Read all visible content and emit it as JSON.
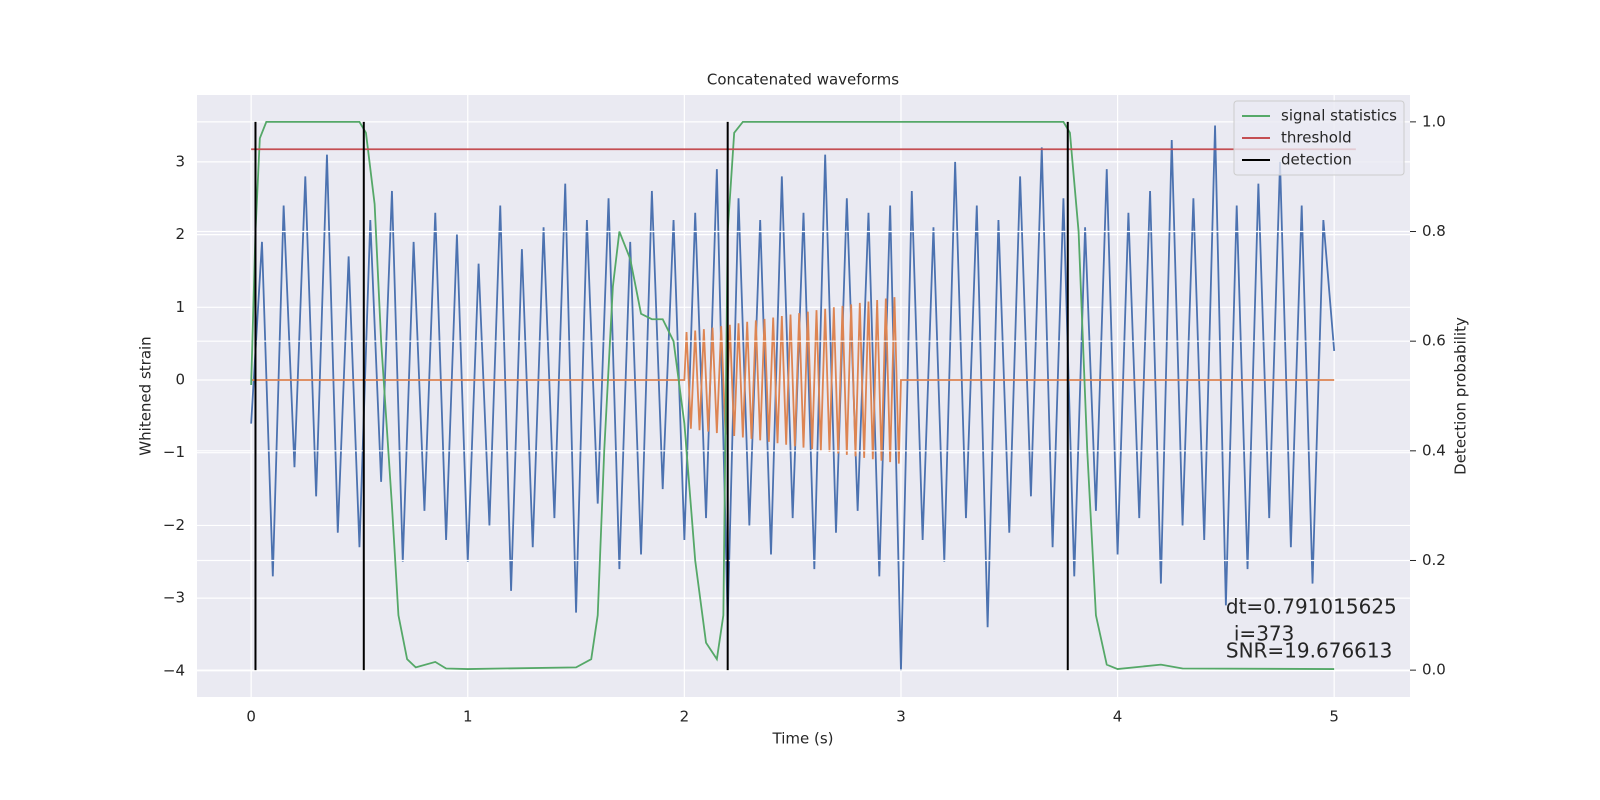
{
  "chart_data": {
    "type": "line",
    "title": "Concatenated waveforms",
    "xlabel": "Time (s)",
    "ylabel": "Whitened strain",
    "y2label": "Detection probability",
    "xlim": [
      -0.25,
      5.35
    ],
    "ylim": [
      -4.36,
      3.92
    ],
    "y2lim": [
      -0.049,
      1.049
    ],
    "xticks": [
      0,
      1,
      2,
      3,
      4,
      5
    ],
    "yticks": [
      {
        "value": -4,
        "label": "−4"
      },
      {
        "value": -3,
        "label": "−3"
      },
      {
        "value": -2,
        "label": "−2"
      },
      {
        "value": -1,
        "label": "−1"
      },
      0,
      1,
      2,
      3
    ],
    "y2ticks": [
      {
        "value": 0,
        "label": "0.0"
      },
      0.2,
      0.4,
      0.6,
      0.8,
      {
        "value": 1,
        "label": "1.0"
      }
    ],
    "grid": true,
    "legend": "upper right",
    "background": "#eaeaf2",
    "series": [
      {
        "color": "#4c72b0",
        "axis": "y",
        "x": [
          0,
          0.05,
          0.1,
          0.15,
          0.2,
          0.25,
          0.3,
          0.35,
          0.4,
          0.45,
          0.5,
          0.55,
          0.6,
          0.65,
          0.7,
          0.75,
          0.8,
          0.85,
          0.9,
          0.95,
          1,
          1.05,
          1.1,
          1.15,
          1.2,
          1.25,
          1.3,
          1.35,
          1.4,
          1.45,
          1.5,
          1.55,
          1.6,
          1.65,
          1.7,
          1.75,
          1.8,
          1.85,
          1.9,
          1.95,
          2,
          2.05,
          2.1,
          2.15,
          2.2,
          2.25,
          2.3,
          2.35,
          2.4,
          2.45,
          2.5,
          2.55,
          2.6,
          2.65,
          2.7,
          2.75,
          2.8,
          2.85,
          2.9,
          2.95,
          3,
          3.05,
          3.1,
          3.15,
          3.2,
          3.25,
          3.3,
          3.35,
          3.4,
          3.45,
          3.5,
          3.55,
          3.6,
          3.65,
          3.7,
          3.75,
          3.8,
          3.85,
          3.9,
          3.95,
          4,
          4.05,
          4.1,
          4.15,
          4.2,
          4.25,
          4.3,
          4.35,
          4.4,
          4.45,
          4.5,
          4.55,
          4.6,
          4.65,
          4.7,
          4.75,
          4.8,
          4.85,
          4.9,
          4.95,
          5
        ],
        "values": [
          -0.6,
          1.9,
          -2.7,
          2.4,
          -1.2,
          2.8,
          -1.6,
          3.1,
          -2.1,
          1.7,
          -2.3,
          2.2,
          -1.4,
          2.6,
          -2.5,
          1.9,
          -1.8,
          2.3,
          -2.2,
          2.0,
          -2.5,
          1.6,
          -2.0,
          2.4,
          -2.9,
          1.8,
          -2.3,
          2.1,
          -1.9,
          2.7,
          -3.2,
          2.2,
          -1.7,
          2.5,
          -2.6,
          1.9,
          -2.4,
          2.6,
          -1.5,
          2.2,
          -2.2,
          2.3,
          -1.9,
          2.9,
          -3.3,
          2.5,
          -2.0,
          2.2,
          -2.4,
          2.8,
          -1.9,
          2.3,
          -2.6,
          3.1,
          -2.1,
          2.5,
          -1.8,
          2.3,
          -2.7,
          2.4,
          -4.0,
          2.6,
          -2.2,
          2.1,
          -2.5,
          3.0,
          -1.9,
          2.4,
          -3.4,
          2.2,
          -2.1,
          2.8,
          -1.6,
          3.2,
          -2.3,
          2.5,
          -2.7,
          2.1,
          -1.8,
          2.9,
          -2.4,
          2.3,
          -1.9,
          2.6,
          -2.8,
          3.3,
          -2.0,
          2.5,
          -2.2,
          3.5,
          -3.1,
          2.4,
          -2.6,
          2.7,
          -1.9,
          3.0,
          -2.3,
          2.4,
          -2.8,
          2.2,
          0.4
        ]
      },
      {
        "color": "#dd8452",
        "axis": "y",
        "x": [
          0,
          2,
          2.01,
          2.03,
          2.05,
          2.07,
          2.09,
          2.11,
          2.13,
          2.15,
          2.17,
          2.19,
          2.21,
          2.23,
          2.25,
          2.27,
          2.29,
          2.31,
          2.33,
          2.35,
          2.37,
          2.39,
          2.41,
          2.43,
          2.45,
          2.47,
          2.49,
          2.51,
          2.53,
          2.55,
          2.57,
          2.59,
          2.61,
          2.63,
          2.65,
          2.67,
          2.69,
          2.71,
          2.73,
          2.75,
          2.77,
          2.79,
          2.81,
          2.83,
          2.85,
          2.87,
          2.89,
          2.91,
          2.93,
          2.95,
          2.97,
          2.99,
          3,
          5
        ],
        "values": [
          0,
          0,
          0.66,
          -0.67,
          0.68,
          -0.69,
          0.7,
          -0.71,
          0.72,
          -0.73,
          0.74,
          -0.75,
          0.76,
          -0.77,
          0.78,
          -0.79,
          0.8,
          -0.81,
          0.82,
          -0.83,
          0.84,
          -0.85,
          0.86,
          -0.87,
          0.88,
          -0.89,
          0.9,
          -0.91,
          0.92,
          -0.93,
          0.94,
          -0.95,
          0.96,
          -0.97,
          0.98,
          -0.99,
          1.0,
          -1.01,
          1.02,
          -1.03,
          1.04,
          -1.05,
          1.06,
          -1.07,
          1.08,
          -1.09,
          1.1,
          -1.11,
          1.12,
          -1.13,
          1.14,
          -1.15,
          0,
          0
        ]
      },
      {
        "name": "signal statistics",
        "color": "#55a868",
        "axis": "y2",
        "x": [
          0,
          0.02,
          0.04,
          0.07,
          0.5,
          0.53,
          0.57,
          0.6,
          0.65,
          0.68,
          0.72,
          0.76,
          0.85,
          0.9,
          1.0,
          1.5,
          1.57,
          1.6,
          1.63,
          1.67,
          1.7,
          1.75,
          1.8,
          1.85,
          1.9,
          1.95,
          2.0,
          2.05,
          2.1,
          2.15,
          2.18,
          2.2,
          2.23,
          2.27,
          3.75,
          3.78,
          3.82,
          3.86,
          3.9,
          3.95,
          4.0,
          4.2,
          4.3,
          5.0
        ],
        "values": [
          0.52,
          0.8,
          0.97,
          1.0,
          1.0,
          0.98,
          0.85,
          0.6,
          0.3,
          0.1,
          0.02,
          0.005,
          0.015,
          0.003,
          0.002,
          0.005,
          0.02,
          0.1,
          0.4,
          0.7,
          0.8,
          0.75,
          0.65,
          0.64,
          0.64,
          0.6,
          0.45,
          0.2,
          0.05,
          0.02,
          0.1,
          0.8,
          0.98,
          1.0,
          1.0,
          0.98,
          0.8,
          0.4,
          0.1,
          0.01,
          0.002,
          0.01,
          0.003,
          0.002
        ]
      },
      {
        "name": "threshold",
        "color": "#c44e52",
        "axis": "y2",
        "x": [
          0,
          5.1
        ],
        "values": [
          0.95,
          0.95
        ]
      },
      {
        "name": "detection",
        "color": "#000000",
        "axis": "y2",
        "kind": "vlines",
        "x": [
          0.02,
          0.52,
          2.2,
          3.77
        ],
        "ymin": 0,
        "ymax": 1
      }
    ],
    "annotations": [
      "dt=0.791015625",
      "i=373",
      "SNR=19.676613"
    ]
  }
}
